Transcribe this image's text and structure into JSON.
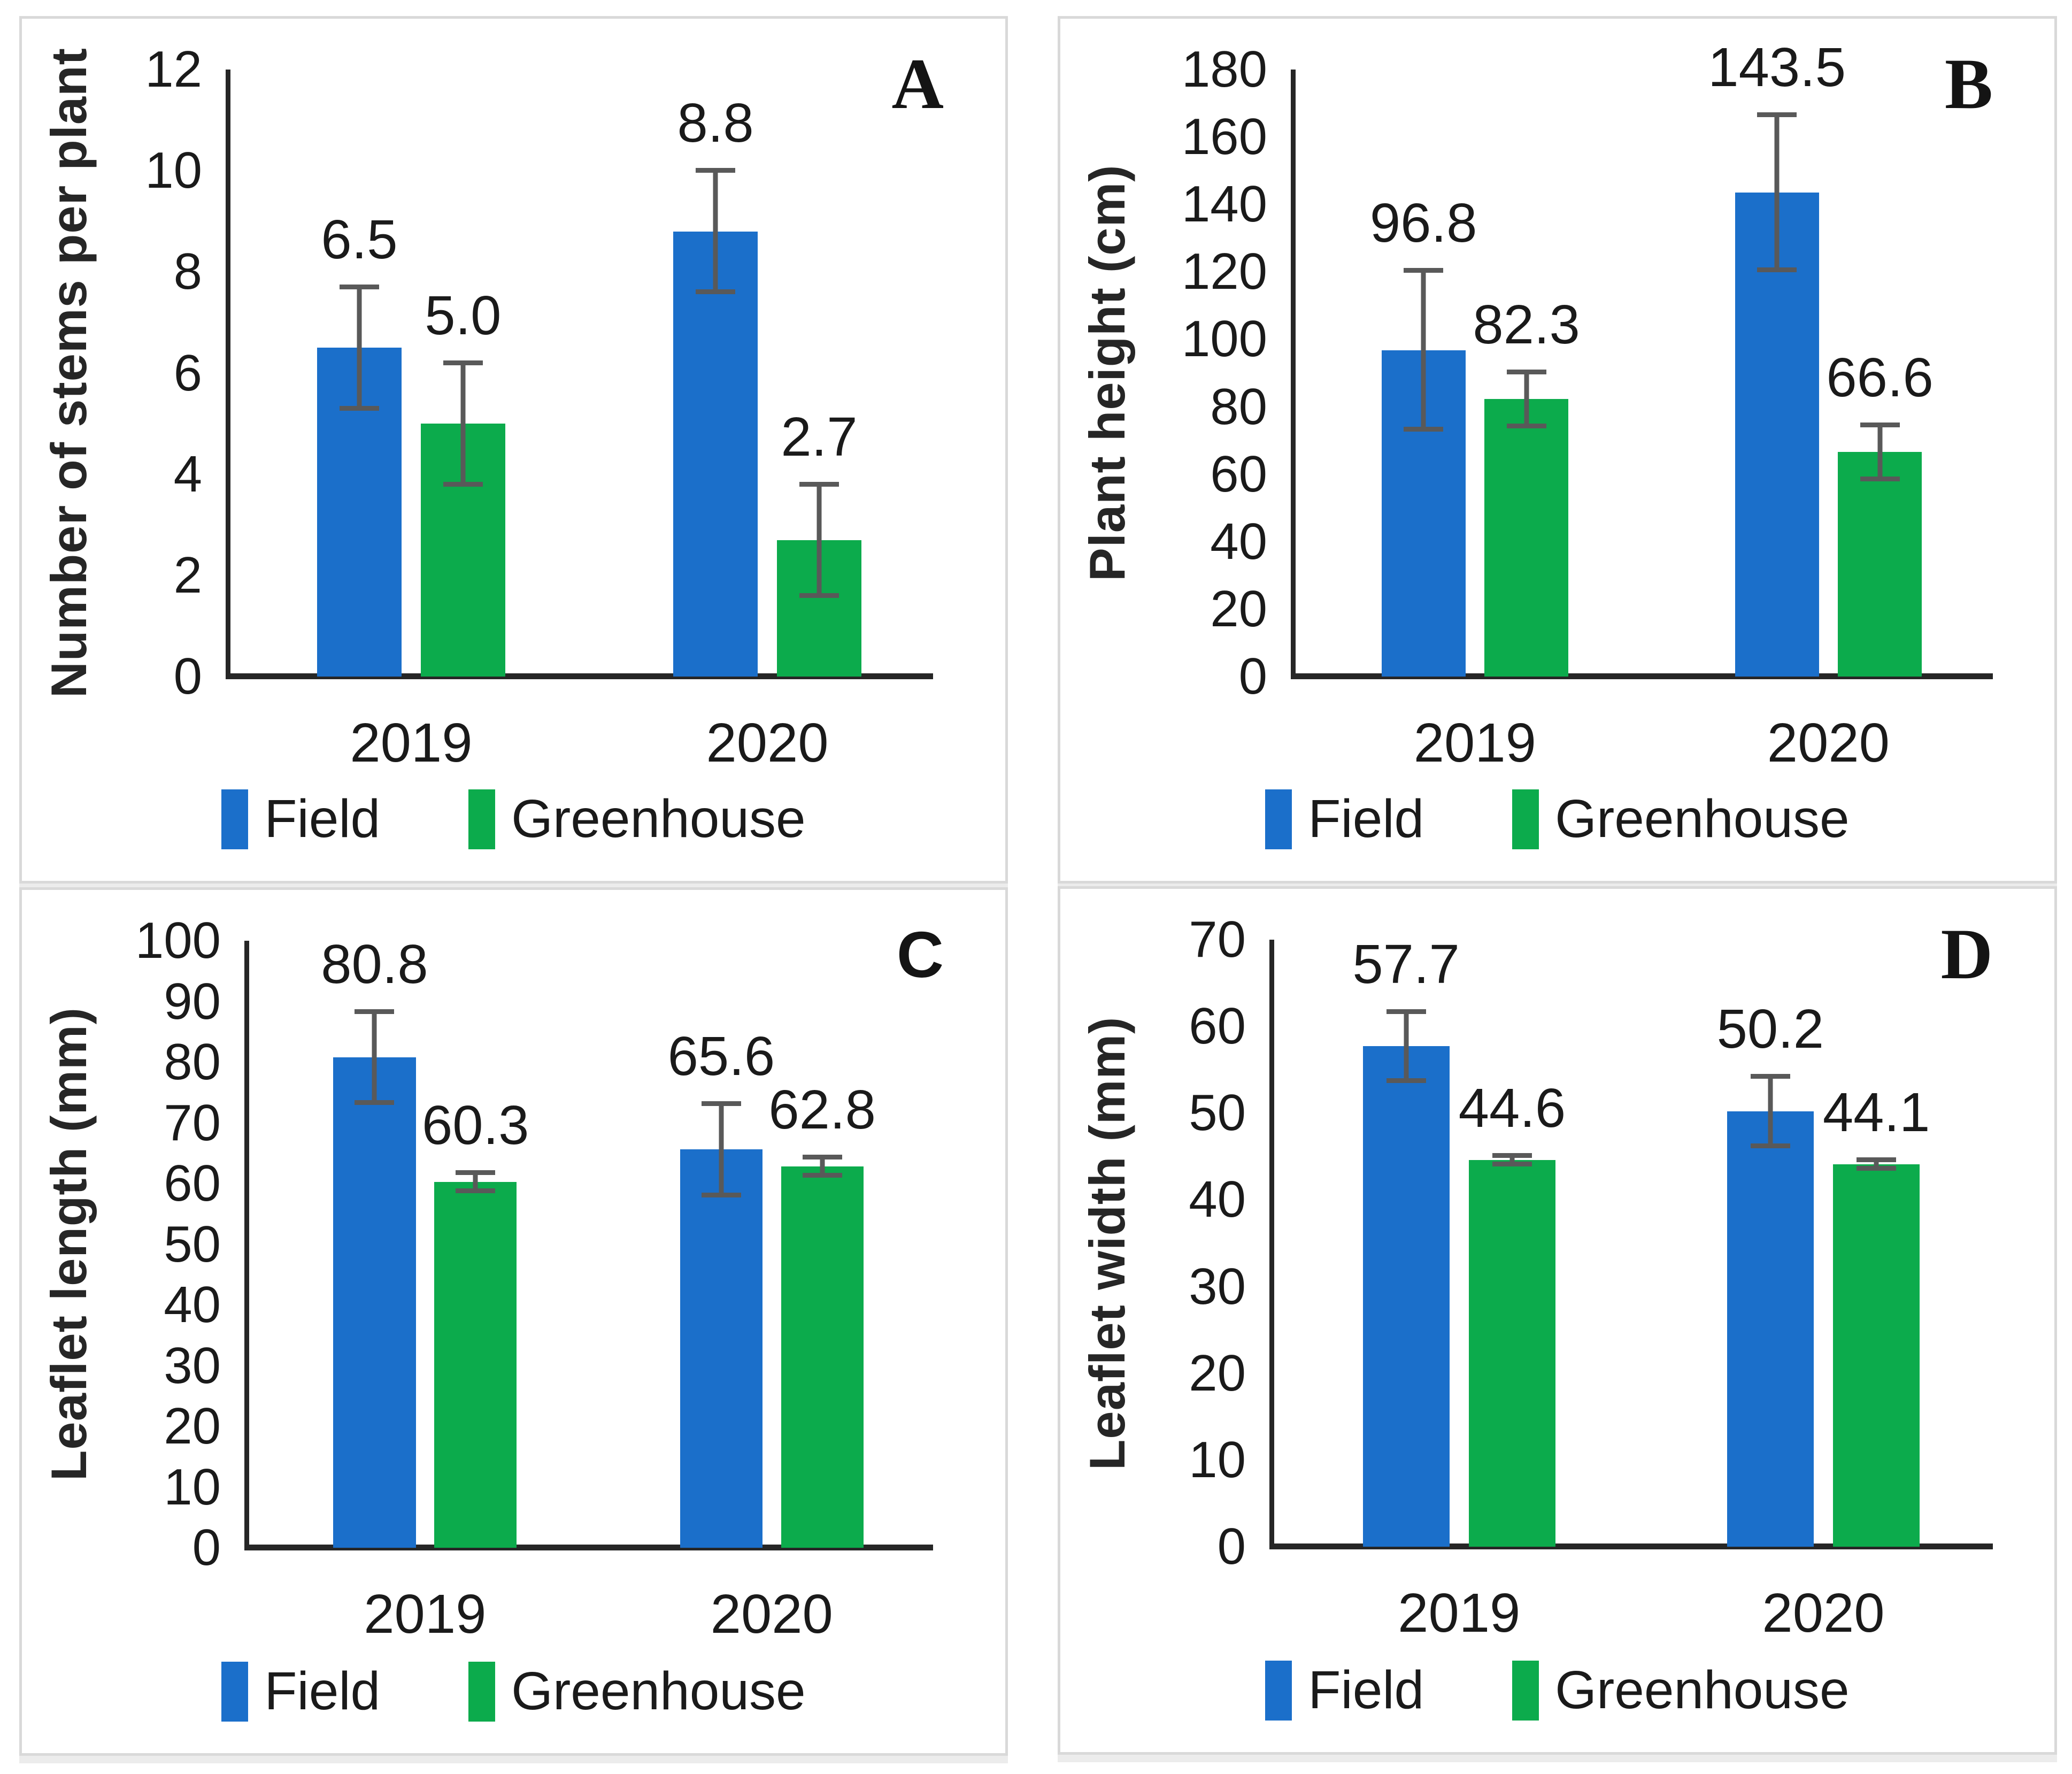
{
  "figure": {
    "background": "#ffffff",
    "panel_border_color": "#d9d9d9",
    "axis_color": "#262626",
    "error_bar_color": "#595959",
    "text_color": "#1a1a1a",
    "field_color": "#1b6fca",
    "greenhouse_color": "#0cab4c",
    "legend_labels": [
      "Field",
      "Greenhouse"
    ]
  },
  "chart_data": [
    {
      "type": "bar",
      "panel_letter": "A",
      "ylabel": "Number of stems per plant",
      "xlabel": "",
      "ylim": [
        0,
        12
      ],
      "ytick_step": 2,
      "grid": false,
      "legend_position": "bottom",
      "categories": [
        "2019",
        "2020"
      ],
      "legend": [
        "Field",
        "Greenhouse"
      ],
      "series": [
        {
          "name": "Field",
          "color": "#1b6fca",
          "values": [
            6.5,
            8.8
          ],
          "errors": [
            1.2,
            1.2
          ],
          "value_labels": [
            "6.5",
            "8.8"
          ]
        },
        {
          "name": "Greenhouse",
          "color": "#0cab4c",
          "values": [
            5.0,
            2.7
          ],
          "errors": [
            1.2,
            1.1
          ],
          "value_labels": [
            "5.0",
            "2.7"
          ]
        }
      ]
    },
    {
      "type": "bar",
      "panel_letter": "B",
      "ylabel": "Plant height (cm)",
      "xlabel": "",
      "ylim": [
        0,
        180
      ],
      "ytick_step": 20,
      "grid": false,
      "legend_position": "bottom",
      "categories": [
        "2019",
        "2020"
      ],
      "legend": [
        "Field",
        "Greenhouse"
      ],
      "series": [
        {
          "name": "Field",
          "color": "#1b6fca",
          "values": [
            96.8,
            143.5
          ],
          "errors": [
            23.5,
            23.0
          ],
          "value_labels": [
            "96.8",
            "143.5"
          ]
        },
        {
          "name": "Greenhouse",
          "color": "#0cab4c",
          "values": [
            82.3,
            66.6
          ],
          "errors": [
            8.0,
            8.0
          ],
          "value_labels": [
            "82.3",
            "66.6"
          ]
        }
      ]
    },
    {
      "type": "bar",
      "panel_letter": "C",
      "ylabel": "Leaflet length (mm)",
      "xlabel": "",
      "ylim": [
        0,
        100
      ],
      "ytick_step": 10,
      "grid": false,
      "legend_position": "bottom",
      "categories": [
        "2019",
        "2020"
      ],
      "legend": [
        "Field",
        "Greenhouse"
      ],
      "series": [
        {
          "name": "Field",
          "color": "#1b6fca",
          "values": [
            80.8,
            65.6
          ],
          "errors": [
            7.5,
            7.5
          ],
          "value_labels": [
            "80.8",
            "65.6"
          ]
        },
        {
          "name": "Greenhouse",
          "color": "#0cab4c",
          "values": [
            60.3,
            62.8
          ],
          "errors": [
            1.5,
            1.5
          ],
          "value_labels": [
            "60.3",
            "62.8"
          ]
        }
      ]
    },
    {
      "type": "bar",
      "panel_letter": "D",
      "ylabel": "Leaflet width (mm)",
      "xlabel": "",
      "ylim": [
        0,
        70
      ],
      "ytick_step": 10,
      "grid": false,
      "legend_position": "bottom",
      "categories": [
        "2019",
        "2020"
      ],
      "legend": [
        "Field",
        "Greenhouse"
      ],
      "series": [
        {
          "name": "Field",
          "color": "#1b6fca",
          "values": [
            57.7,
            50.2
          ],
          "errors": [
            4.0,
            4.0
          ],
          "value_labels": [
            "57.7",
            "50.2"
          ]
        },
        {
          "name": "Greenhouse",
          "color": "#0cab4c",
          "values": [
            44.6,
            44.1
          ],
          "errors": [
            0.5,
            0.5
          ],
          "value_labels": [
            "44.6",
            "44.1"
          ]
        }
      ]
    }
  ]
}
